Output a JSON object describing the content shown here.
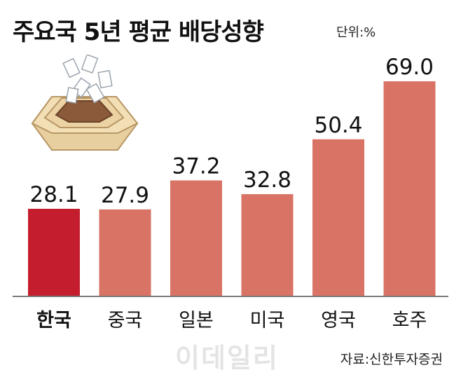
{
  "title": "주요국 5년 평균 배당성향",
  "unit": "단위:%",
  "source": "자료:신한투자증권",
  "watermark": "이데일리",
  "colors": {
    "highlight": "#c41e2e",
    "bar": "#d97365",
    "baseline": "#7a7a7a"
  },
  "chart_data": {
    "type": "bar",
    "title": "주요국 5년 평균 배당성향",
    "ylabel": "",
    "xlabel": "",
    "ylim": [
      0,
      69.0
    ],
    "grid": false,
    "categories": [
      "한국",
      "중국",
      "일본",
      "미국",
      "영국",
      "호주"
    ],
    "values": [
      28.1,
      27.9,
      37.2,
      32.8,
      50.4,
      69.0
    ],
    "value_labels": [
      "28.1",
      "27.9",
      "37.2",
      "32.8",
      "50.4",
      "69.0"
    ],
    "highlight_index": 0
  }
}
